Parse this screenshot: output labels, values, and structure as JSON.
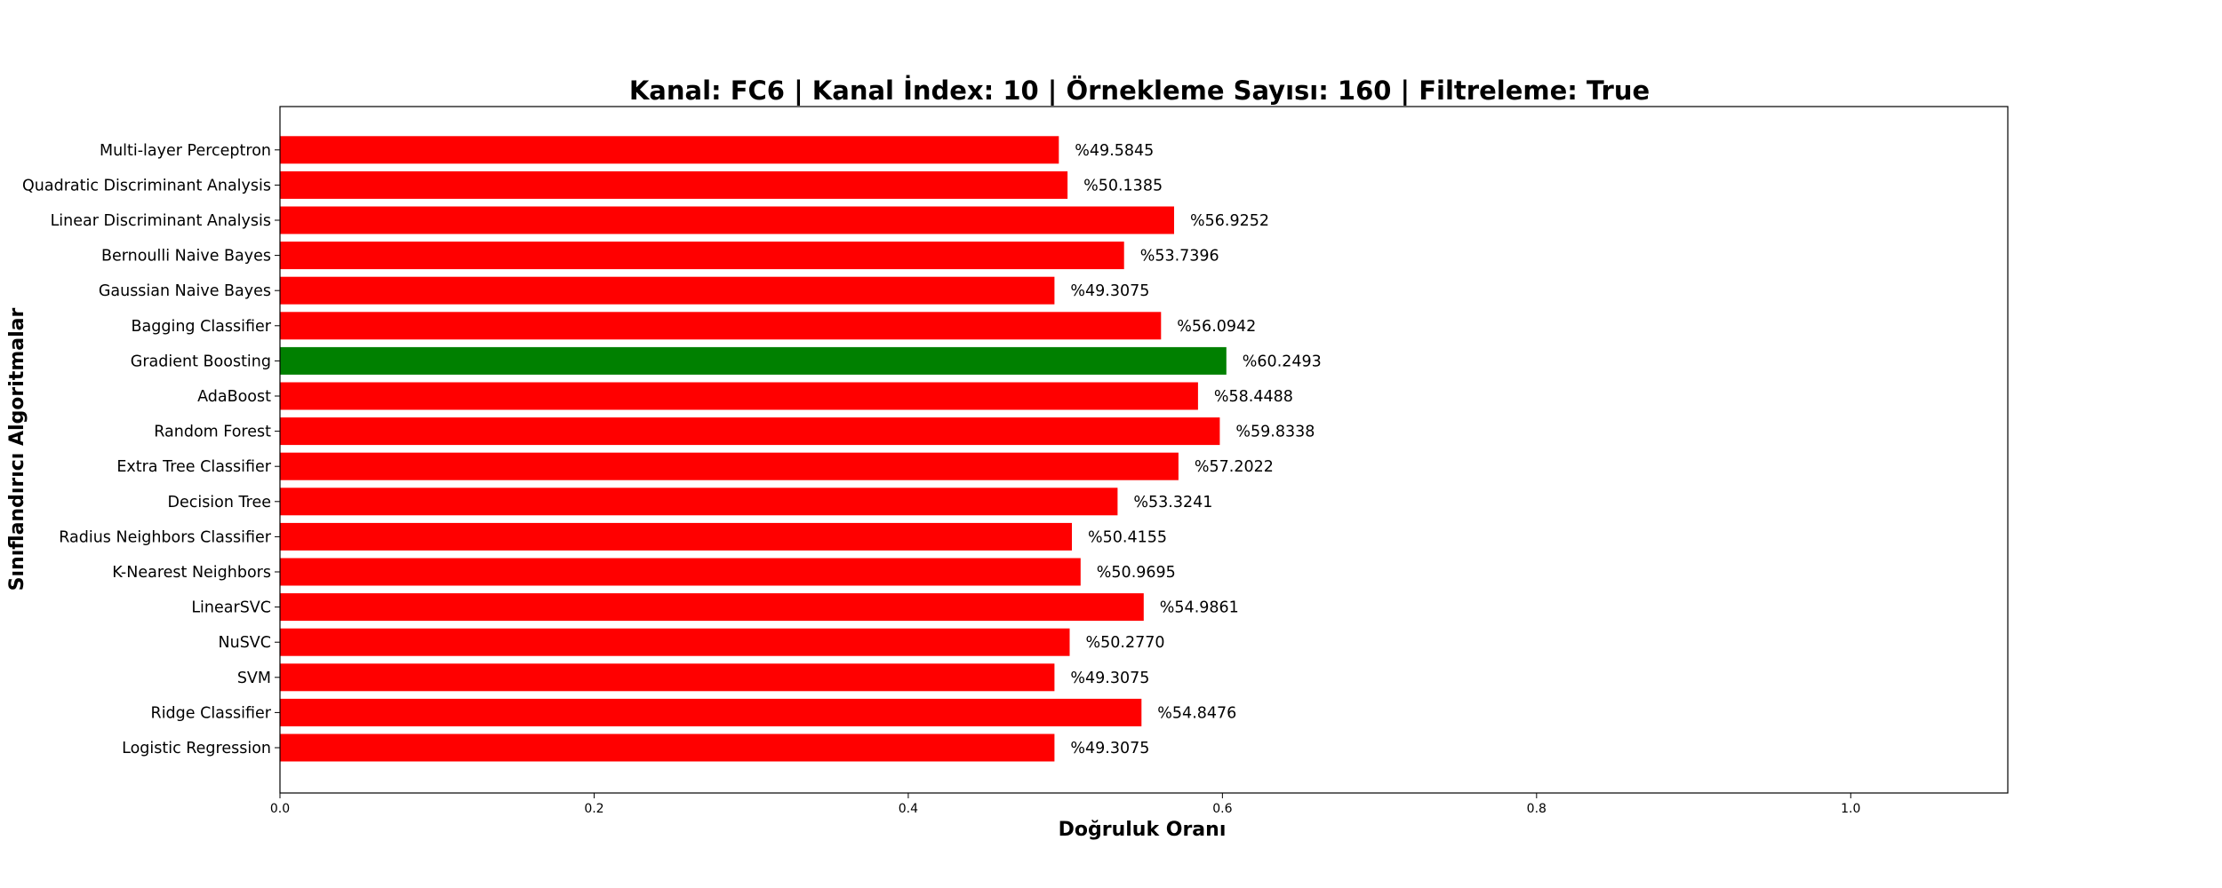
{
  "chart_data": {
    "type": "bar",
    "orientation": "horizontal",
    "title": "Kanal: FC6 | Kanal İndex: 10 | Örnekleme Sayısı: 160 | Filtreleme: True",
    "xlabel": "Doğruluk Oranı",
    "ylabel": "Sınıflandırıcı Algoritmalar",
    "xlim": [
      0,
      1.1
    ],
    "xticks": [
      "0.0",
      "0.2",
      "0.4",
      "0.6",
      "0.8",
      "1.0"
    ],
    "grid": false,
    "legend": "none",
    "colors": {
      "default": "#ff0000",
      "best": "#008000"
    },
    "bars": [
      {
        "category": "Logistic Regression",
        "value": 0.493075,
        "label": "%49.3075",
        "best": false
      },
      {
        "category": "Ridge Classifier",
        "value": 0.548476,
        "label": "%54.8476",
        "best": false
      },
      {
        "category": "SVM",
        "value": 0.493075,
        "label": "%49.3075",
        "best": false
      },
      {
        "category": "NuSVC",
        "value": 0.50277,
        "label": "%50.2770",
        "best": false
      },
      {
        "category": "LinearSVC",
        "value": 0.549861,
        "label": "%54.9861",
        "best": false
      },
      {
        "category": "K-Nearest Neighbors",
        "value": 0.509695,
        "label": "%50.9695",
        "best": false
      },
      {
        "category": "Radius Neighbors Classifier",
        "value": 0.504155,
        "label": "%50.4155",
        "best": false
      },
      {
        "category": "Decision Tree",
        "value": 0.533241,
        "label": "%53.3241",
        "best": false
      },
      {
        "category": "Extra Tree Classifier",
        "value": 0.572022,
        "label": "%57.2022",
        "best": false
      },
      {
        "category": "Random Forest",
        "value": 0.598338,
        "label": "%59.8338",
        "best": false
      },
      {
        "category": "AdaBoost",
        "value": 0.584488,
        "label": "%58.4488",
        "best": false
      },
      {
        "category": "Gradient Boosting",
        "value": 0.602493,
        "label": "%60.2493",
        "best": true
      },
      {
        "category": "Bagging Classifier",
        "value": 0.560942,
        "label": "%56.0942",
        "best": false
      },
      {
        "category": "Gaussian Naive Bayes",
        "value": 0.493075,
        "label": "%49.3075",
        "best": false
      },
      {
        "category": "Bernoulli Naive Bayes",
        "value": 0.537396,
        "label": "%53.7396",
        "best": false
      },
      {
        "category": "Linear Discriminant Analysis",
        "value": 0.569252,
        "label": "%56.9252",
        "best": false
      },
      {
        "category": "Quadratic Discriminant Analysis",
        "value": 0.501385,
        "label": "%50.1385",
        "best": false
      },
      {
        "category": "Multi-layer Perceptron",
        "value": 0.495845,
        "label": "%49.5845",
        "best": false
      }
    ]
  }
}
